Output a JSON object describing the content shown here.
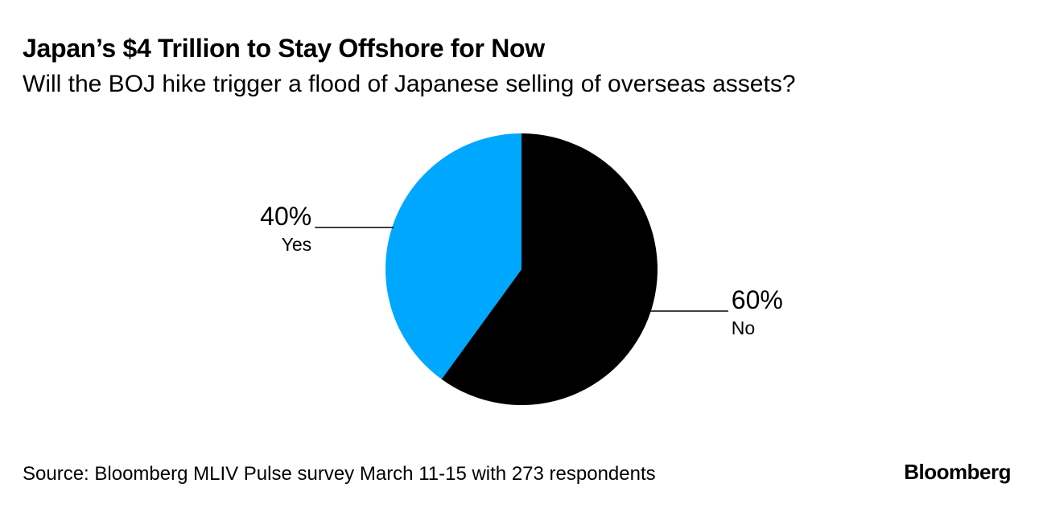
{
  "chart_data": {
    "type": "pie",
    "title": "Japan’s $4 Trillion to Stay Offshore for Now",
    "subtitle": "Will the BOJ hike trigger a flood of Japanese selling of overseas assets?",
    "slices": [
      {
        "label": "No",
        "value": 60,
        "value_label": "60%",
        "color": "#000000"
      },
      {
        "label": "Yes",
        "value": 40,
        "value_label": "40%",
        "color": "#00a7ff"
      }
    ],
    "start": "12 o'clock",
    "direction": "clockwise"
  },
  "footer": {
    "source": "Source: Bloomberg MLIV Pulse survey March 11-15 with 273 respondents",
    "brand": "Bloomberg"
  }
}
